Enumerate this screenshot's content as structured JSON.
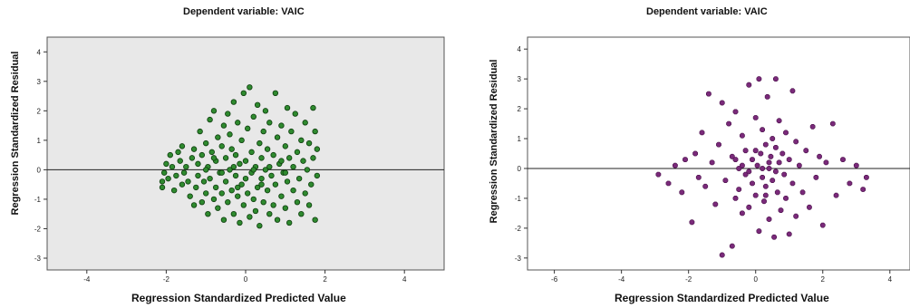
{
  "chart_data": [
    {
      "type": "scatter",
      "title": "Dependent variable: VAIC",
      "xlabel": "Regression Standardized Predicted Value",
      "ylabel": "Regression Standardized Residual",
      "xlim": [
        -5,
        5
      ],
      "ylim": [
        -3.4,
        4.5
      ],
      "x_ticks": [
        "-4",
        "-2",
        "0",
        "2",
        "4"
      ],
      "y_ticks": [
        "-3",
        "-2",
        "-1",
        "0",
        "1",
        "2",
        "3",
        "4"
      ],
      "reference_line_y": 0,
      "grid": false,
      "marker_color": "#2f8a2f",
      "marker_edge": "#0d3d0d",
      "plot_background": "#e8e8e8",
      "points": [
        [
          -2.1,
          -0.6
        ],
        [
          -2.1,
          -0.4
        ],
        [
          -2.05,
          -0.1
        ],
        [
          -2.0,
          0.2
        ],
        [
          -1.95,
          -0.3
        ],
        [
          -1.9,
          0.5
        ],
        [
          -1.85,
          0.1
        ],
        [
          -1.8,
          -0.7
        ],
        [
          -1.75,
          -0.2
        ],
        [
          -1.7,
          0.6
        ],
        [
          -1.6,
          0.8
        ],
        [
          -1.65,
          0.3
        ],
        [
          -1.6,
          -0.5
        ],
        [
          -1.55,
          -0.1
        ],
        [
          -1.5,
          0.1
        ],
        [
          -1.45,
          -0.4
        ],
        [
          -1.4,
          -0.9
        ],
        [
          -1.35,
          0.4
        ],
        [
          -1.3,
          -1.2
        ],
        [
          -1.3,
          0.7
        ],
        [
          -1.25,
          -0.6
        ],
        [
          -1.2,
          0.2
        ],
        [
          -1.2,
          -0.2
        ],
        [
          -1.15,
          1.3
        ],
        [
          -1.1,
          -1.1
        ],
        [
          -1.1,
          0.5
        ],
        [
          -1.05,
          -0.4
        ],
        [
          -1.0,
          -0.8
        ],
        [
          -1.0,
          0.9
        ],
        [
          -0.95,
          0.1
        ],
        [
          -0.95,
          -1.5
        ],
        [
          -0.9,
          1.7
        ],
        [
          -0.9,
          -0.3
        ],
        [
          -0.85,
          0.6
        ],
        [
          -0.8,
          -1.0
        ],
        [
          -0.8,
          2.0
        ],
        [
          -0.75,
          0.3
        ],
        [
          -0.75,
          -0.6
        ],
        [
          -0.7,
          1.1
        ],
        [
          -0.7,
          -1.3
        ],
        [
          -0.65,
          -0.1
        ],
        [
          -0.6,
          0.8
        ],
        [
          -0.6,
          -0.8
        ],
        [
          -0.55,
          1.5
        ],
        [
          -0.55,
          -1.7
        ],
        [
          -0.5,
          0.4
        ],
        [
          -0.5,
          -0.4
        ],
        [
          -0.45,
          1.9
        ],
        [
          -0.45,
          -1.1
        ],
        [
          -0.4,
          0.0
        ],
        [
          -0.4,
          1.2
        ],
        [
          -0.35,
          -0.7
        ],
        [
          -0.35,
          0.7
        ],
        [
          -0.3,
          -1.5
        ],
        [
          -0.3,
          2.3
        ],
        [
          -0.25,
          -0.2
        ],
        [
          -0.25,
          0.5
        ],
        [
          -0.2,
          -0.9
        ],
        [
          -0.2,
          1.6
        ],
        [
          -0.15,
          0.2
        ],
        [
          -0.15,
          -1.8
        ],
        [
          -0.1,
          1.0
        ],
        [
          -0.1,
          -0.5
        ],
        [
          -0.05,
          2.6
        ],
        [
          -0.05,
          -1.2
        ],
        [
          0.0,
          0.3
        ],
        [
          0.0,
          -0.3
        ],
        [
          0.05,
          1.4
        ],
        [
          0.05,
          -0.8
        ],
        [
          0.1,
          2.8
        ],
        [
          0.1,
          -1.6
        ],
        [
          0.15,
          0.6
        ],
        [
          0.15,
          -0.1
        ],
        [
          0.2,
          1.8
        ],
        [
          0.2,
          -1.0
        ],
        [
          0.25,
          0.1
        ],
        [
          0.25,
          -1.4
        ],
        [
          0.3,
          2.2
        ],
        [
          0.3,
          -0.6
        ],
        [
          0.35,
          0.9
        ],
        [
          0.35,
          -1.9
        ],
        [
          0.4,
          0.4
        ],
        [
          0.4,
          -0.3
        ],
        [
          0.45,
          1.3
        ],
        [
          0.45,
          -1.1
        ],
        [
          0.5,
          0.0
        ],
        [
          0.5,
          2.0
        ],
        [
          0.55,
          -0.7
        ],
        [
          0.55,
          0.7
        ],
        [
          0.6,
          -1.5
        ],
        [
          0.6,
          1.6
        ],
        [
          0.65,
          -0.2
        ],
        [
          0.7,
          0.5
        ],
        [
          0.7,
          -1.2
        ],
        [
          0.75,
          2.6
        ],
        [
          0.75,
          -0.5
        ],
        [
          0.8,
          1.1
        ],
        [
          0.8,
          -1.7
        ],
        [
          0.85,
          0.2
        ],
        [
          0.9,
          -0.9
        ],
        [
          0.9,
          1.5
        ],
        [
          0.95,
          -0.1
        ],
        [
          1.0,
          0.8
        ],
        [
          1.0,
          -1.3
        ],
        [
          1.05,
          2.1
        ],
        [
          1.05,
          -0.4
        ],
        [
          1.1,
          0.4
        ],
        [
          1.1,
          -1.8
        ],
        [
          1.15,
          1.3
        ],
        [
          1.2,
          -0.7
        ],
        [
          1.2,
          0.1
        ],
        [
          1.25,
          1.9
        ],
        [
          1.3,
          -1.1
        ],
        [
          1.3,
          0.6
        ],
        [
          1.35,
          -0.3
        ],
        [
          1.4,
          1.0
        ],
        [
          1.4,
          -1.5
        ],
        [
          1.45,
          0.3
        ],
        [
          1.5,
          1.6
        ],
        [
          1.5,
          -0.8
        ],
        [
          1.55,
          0.0
        ],
        [
          1.6,
          -1.2
        ],
        [
          1.6,
          0.9
        ],
        [
          1.65,
          -0.5
        ],
        [
          1.7,
          2.1
        ],
        [
          1.7,
          0.4
        ],
        [
          1.75,
          -1.7
        ],
        [
          1.75,
          1.3
        ],
        [
          1.8,
          -0.2
        ],
        [
          1.8,
          0.7
        ],
        [
          -0.3,
          0.1
        ],
        [
          0.2,
          0.0
        ],
        [
          -0.6,
          -0.1
        ],
        [
          0.6,
          0.1
        ],
        [
          -1.0,
          0.0
        ],
        [
          1.0,
          -0.1
        ],
        [
          -0.2,
          -0.6
        ],
        [
          0.4,
          -0.5
        ],
        [
          -0.8,
          0.4
        ],
        [
          0.9,
          0.3
        ]
      ]
    },
    {
      "type": "scatter",
      "title": "Dependent variable: VAIC",
      "xlabel": "Regression Standardized Predicted Value",
      "ylabel": "Regression Standardized Residual",
      "xlim": [
        -6.8,
        4.6
      ],
      "ylim": [
        -3.4,
        4.4
      ],
      "x_ticks": [
        "-6",
        "-4",
        "-2",
        "0",
        "2",
        "4"
      ],
      "y_ticks": [
        "-3",
        "-2",
        "-1",
        "0",
        "1",
        "2",
        "3",
        "4"
      ],
      "reference_line_y": 0,
      "grid": false,
      "marker_color": "#7a2a7a",
      "marker_edge": "#4a104a",
      "plot_background": "#ffffff",
      "points": [
        [
          -2.9,
          -0.2
        ],
        [
          -2.6,
          -0.5
        ],
        [
          -2.4,
          0.1
        ],
        [
          -2.2,
          -0.8
        ],
        [
          -2.1,
          0.3
        ],
        [
          -1.9,
          -1.8
        ],
        [
          -1.8,
          0.5
        ],
        [
          -1.7,
          -0.3
        ],
        [
          -1.6,
          1.2
        ],
        [
          -1.5,
          -0.6
        ],
        [
          -1.4,
          2.5
        ],
        [
          -1.3,
          0.2
        ],
        [
          -1.2,
          -1.2
        ],
        [
          -1.1,
          0.8
        ],
        [
          -1.0,
          -2.9
        ],
        [
          -1.0,
          2.2
        ],
        [
          -0.9,
          -0.4
        ],
        [
          -0.8,
          1.5
        ],
        [
          -0.7,
          -2.6
        ],
        [
          -0.7,
          0.4
        ],
        [
          -0.6,
          -1.0
        ],
        [
          -0.6,
          1.9
        ],
        [
          -0.5,
          0.0
        ],
        [
          -0.5,
          -0.7
        ],
        [
          -0.4,
          1.1
        ],
        [
          -0.4,
          -1.5
        ],
        [
          -0.3,
          0.6
        ],
        [
          -0.3,
          -0.2
        ],
        [
          -0.2,
          2.8
        ],
        [
          -0.2,
          -1.3
        ],
        [
          -0.1,
          0.3
        ],
        [
          -0.1,
          -0.5
        ],
        [
          0.0,
          1.7
        ],
        [
          0.0,
          -0.9
        ],
        [
          0.05,
          0.1
        ],
        [
          0.1,
          -2.1
        ],
        [
          0.1,
          3.0
        ],
        [
          0.15,
          0.5
        ],
        [
          0.2,
          -0.3
        ],
        [
          0.2,
          1.3
        ],
        [
          0.25,
          -1.1
        ],
        [
          0.3,
          0.8
        ],
        [
          0.3,
          -0.6
        ],
        [
          0.35,
          2.4
        ],
        [
          0.4,
          0.0
        ],
        [
          0.4,
          -1.7
        ],
        [
          0.45,
          0.4
        ],
        [
          0.5,
          1.0
        ],
        [
          0.5,
          -0.4
        ],
        [
          0.55,
          -2.3
        ],
        [
          0.6,
          0.7
        ],
        [
          0.6,
          3.0
        ],
        [
          0.65,
          -0.8
        ],
        [
          0.7,
          1.6
        ],
        [
          0.7,
          0.2
        ],
        [
          0.75,
          -1.4
        ],
        [
          0.8,
          0.5
        ],
        [
          0.85,
          -0.2
        ],
        [
          0.9,
          1.2
        ],
        [
          0.9,
          -1.0
        ],
        [
          1.0,
          0.3
        ],
        [
          1.0,
          -2.2
        ],
        [
          1.1,
          2.6
        ],
        [
          1.1,
          -0.5
        ],
        [
          1.2,
          0.9
        ],
        [
          1.2,
          -1.6
        ],
        [
          1.3,
          0.1
        ],
        [
          1.4,
          -0.8
        ],
        [
          1.5,
          0.6
        ],
        [
          1.6,
          -1.3
        ],
        [
          1.7,
          1.4
        ],
        [
          1.8,
          -0.3
        ],
        [
          1.9,
          0.4
        ],
        [
          2.0,
          -1.9
        ],
        [
          2.1,
          0.2
        ],
        [
          2.3,
          1.5
        ],
        [
          2.4,
          -0.9
        ],
        [
          2.6,
          0.3
        ],
        [
          2.8,
          -0.5
        ],
        [
          3.0,
          0.1
        ],
        [
          3.2,
          -0.7
        ],
        [
          3.3,
          -0.3
        ],
        [
          -0.4,
          0.1
        ],
        [
          0.2,
          0.0
        ],
        [
          -0.2,
          -0.1
        ],
        [
          0.4,
          0.2
        ],
        [
          0.0,
          0.6
        ],
        [
          -0.6,
          0.3
        ],
        [
          0.6,
          -0.1
        ],
        [
          0.3,
          -0.9
        ]
      ]
    }
  ]
}
